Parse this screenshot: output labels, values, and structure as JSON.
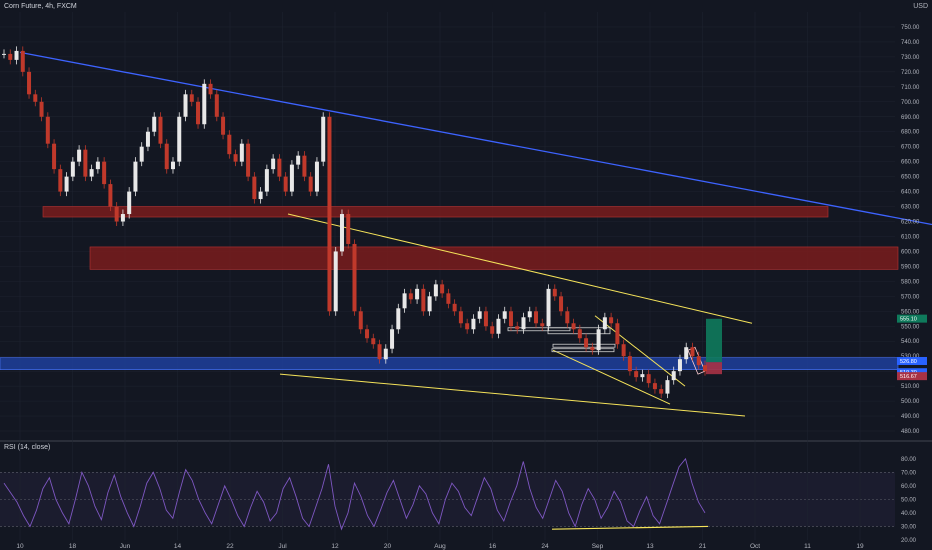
{
  "header": {
    "title": "Corn Future, 4h, FXCM",
    "currency": "USD"
  },
  "rsi_panel": {
    "title": "RSI (14, close)"
  },
  "colors": {
    "background": "#131722",
    "up": "#e8e8e8",
    "down": "#c0392b",
    "trendline_blue": "#3d63ff",
    "trendline_yellow": "#f5e35a",
    "zone_red": "#7a1c1c",
    "zone_blue": "#1e3f9c",
    "rsi_line": "#7e57c2",
    "grid": "#1f2430"
  },
  "chart_data": [
    {
      "type": "line",
      "title": "Corn Future, 4h, FXCM",
      "ylabel": "USD",
      "x_ticks": [
        "10",
        "18",
        "Jun",
        "14",
        "22",
        "Jul",
        "12",
        "20",
        "Aug",
        "16",
        "24",
        "Sep",
        "13",
        "21",
        "Oct",
        "11",
        "19"
      ],
      "y_ticks": [
        480,
        490,
        500,
        510,
        520,
        530,
        540,
        550,
        560,
        570,
        580,
        590,
        600,
        610,
        620,
        630,
        640,
        650,
        660,
        670,
        680,
        690,
        700,
        710,
        720,
        730,
        740,
        750
      ],
      "ylim": [
        474,
        760
      ],
      "series": [
        {
          "values": [
            732,
            728,
            734,
            720,
            705,
            700,
            690,
            672,
            655,
            640,
            650,
            660,
            668,
            650,
            655,
            660,
            645,
            630,
            620,
            625,
            640,
            660,
            670,
            680,
            690,
            672,
            655,
            660,
            690,
            705,
            700,
            685,
            712,
            705,
            690,
            678,
            665,
            660,
            672,
            650,
            635,
            640,
            655,
            662,
            650,
            640,
            658,
            664,
            650,
            640,
            660,
            690,
            560,
            600,
            625,
            605,
            560,
            548,
            542,
            538,
            528,
            535,
            548,
            562,
            572,
            568,
            575,
            560,
            570,
            578,
            572,
            565,
            560,
            552,
            548,
            555,
            560,
            550,
            545,
            555,
            560,
            550,
            548,
            556,
            560,
            552,
            550,
            575,
            570,
            560,
            552,
            548,
            542,
            536,
            534,
            548,
            556,
            552,
            538,
            530,
            520,
            516,
            518,
            512,
            508,
            505,
            514,
            520,
            528,
            536,
            530,
            524,
            520
          ]
        }
      ],
      "annotations": {
        "zones": [
          {
            "type": "resistance",
            "y_top": 630,
            "y_bottom": 623
          },
          {
            "type": "resistance",
            "y_top": 603,
            "y_bottom": 588
          },
          {
            "type": "support",
            "y_top": 529,
            "y_bottom": 521
          }
        ],
        "price_tags": [
          "555.10",
          "526.80",
          "519.30",
          "516.67"
        ]
      }
    },
    {
      "type": "line",
      "title": "RSI (14, close)",
      "y_ticks": [
        20,
        30,
        40,
        50,
        60,
        70,
        80
      ],
      "ylim": [
        20,
        85
      ],
      "levels": [
        70,
        50,
        30
      ],
      "series": [
        {
          "values": [
            62,
            55,
            48,
            38,
            30,
            42,
            58,
            66,
            50,
            40,
            32,
            50,
            70,
            60,
            45,
            35,
            55,
            68,
            52,
            40,
            30,
            45,
            62,
            70,
            58,
            42,
            36,
            55,
            72,
            64,
            50,
            40,
            32,
            46,
            60,
            50,
            38,
            30,
            44,
            56,
            48,
            34,
            40,
            58,
            66,
            52,
            36,
            30,
            44,
            58,
            76,
            45,
            28,
            40,
            62,
            52,
            38,
            30,
            42,
            55,
            64,
            50,
            36,
            46,
            60,
            54,
            40,
            32,
            50,
            62,
            56,
            44,
            38,
            52,
            66,
            58,
            42,
            34,
            48,
            60,
            78,
            58,
            44,
            36,
            50,
            64,
            56,
            40,
            30,
            46,
            58,
            50,
            36,
            44,
            56,
            48,
            34,
            30,
            42,
            52,
            38,
            32,
            46,
            60,
            74,
            80,
            62,
            48,
            40
          ]
        }
      ]
    }
  ]
}
